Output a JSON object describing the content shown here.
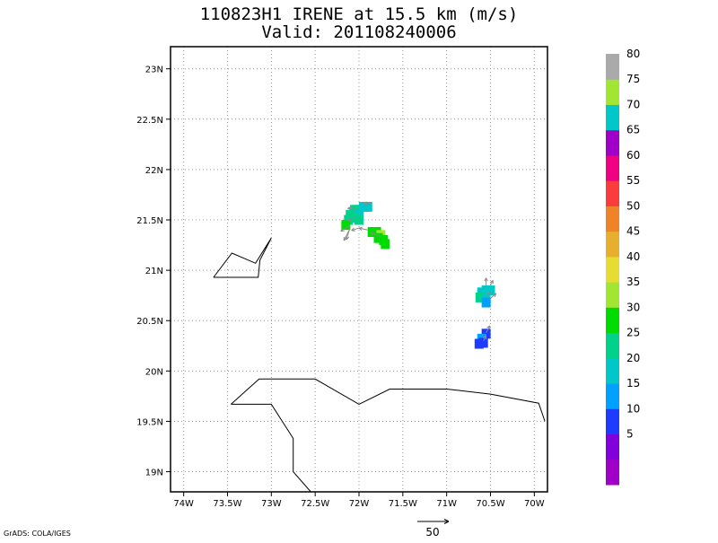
{
  "title": {
    "line1": "110823H1 IRENE at 15.5 km (m/s)",
    "line2": "Valid: 201108240006"
  },
  "axes": {
    "x_ticks": [
      {
        "value": -74.0,
        "label": "74W"
      },
      {
        "value": -73.5,
        "label": "73.5W"
      },
      {
        "value": -73.0,
        "label": "73W"
      },
      {
        "value": -72.5,
        "label": "72.5W"
      },
      {
        "value": -72.0,
        "label": "72W"
      },
      {
        "value": -71.5,
        "label": "71.5W"
      },
      {
        "value": -71.0,
        "label": "71W"
      },
      {
        "value": -70.5,
        "label": "70.5W"
      },
      {
        "value": -70.0,
        "label": "70W"
      }
    ],
    "y_ticks": [
      {
        "value": 19.0,
        "label": "19N"
      },
      {
        "value": 19.5,
        "label": "19.5N"
      },
      {
        "value": 20.0,
        "label": "20N"
      },
      {
        "value": 20.5,
        "label": "20.5N"
      },
      {
        "value": 21.0,
        "label": "21N"
      },
      {
        "value": 21.5,
        "label": "21.5N"
      },
      {
        "value": 22.0,
        "label": "22N"
      },
      {
        "value": 22.5,
        "label": "22.5N"
      },
      {
        "value": 23.0,
        "label": "23N"
      }
    ],
    "lon_range": [
      -74.15,
      -69.85
    ],
    "lat_range": [
      18.8,
      23.22
    ],
    "grid": true
  },
  "colorbar": {
    "levels": [
      {
        "color": "#a000c8"
      },
      {
        "label": "5",
        "color": "#8200dc"
      },
      {
        "label": "10",
        "color": "#1e3cff"
      },
      {
        "label": "15",
        "color": "#00a0ff"
      },
      {
        "label": "20",
        "color": "#00c8c8"
      },
      {
        "label": "25",
        "color": "#00d28c"
      },
      {
        "label": "30",
        "color": "#00dc00"
      },
      {
        "label": "35",
        "color": "#a0e632"
      },
      {
        "label": "40",
        "color": "#e6dc32"
      },
      {
        "label": "45",
        "color": "#e6af2d"
      },
      {
        "label": "50",
        "color": "#f08228"
      },
      {
        "label": "55",
        "color": "#fa3c3c"
      },
      {
        "label": "60",
        "color": "#f00082"
      },
      {
        "label": "65",
        "color": "#a000c8"
      },
      {
        "label": "70",
        "color": "#00c8c8"
      },
      {
        "label": "75",
        "color": "#a0e632"
      },
      {
        "label": "80",
        "color": "#aaaaaa"
      }
    ]
  },
  "scale_arrow": {
    "label": "50"
  },
  "footer": "GrADS: COLA/IGES",
  "map_data": {
    "coastlines": [
      [
        [
          -73.66,
          20.93
        ],
        [
          -73.45,
          21.17
        ],
        [
          -73.18,
          21.07
        ],
        [
          -73.0,
          21.32
        ],
        [
          -73.13,
          21.1
        ],
        [
          -73.15,
          20.93
        ],
        [
          -73.66,
          20.93
        ]
      ],
      [
        [
          -73.46,
          19.67
        ],
        [
          -73.14,
          19.92
        ],
        [
          -72.5,
          19.92
        ],
        [
          -72.0,
          19.67
        ],
        [
          -71.65,
          19.82
        ],
        [
          -71.0,
          19.82
        ],
        [
          -70.5,
          19.77
        ],
        [
          -69.95,
          19.68
        ],
        [
          -69.88,
          19.5
        ]
      ],
      [
        [
          -73.46,
          19.67
        ],
        [
          -73.0,
          19.67
        ],
        [
          -72.75,
          19.33
        ],
        [
          -72.75,
          19.0
        ],
        [
          -72.55,
          18.8
        ]
      ]
    ],
    "cells": [
      {
        "lon": -71.9,
        "lat": 21.63,
        "v": 20
      },
      {
        "lon": -71.95,
        "lat": 21.63,
        "v": 20
      },
      {
        "lon": -72.0,
        "lat": 21.6,
        "v": 22
      },
      {
        "lon": -72.05,
        "lat": 21.6,
        "v": 25
      },
      {
        "lon": -72.1,
        "lat": 21.55,
        "v": 25
      },
      {
        "lon": -72.0,
        "lat": 21.55,
        "v": 22
      },
      {
        "lon": -72.05,
        "lat": 21.52,
        "v": 28
      },
      {
        "lon": -72.0,
        "lat": 21.5,
        "v": 27
      },
      {
        "lon": -72.12,
        "lat": 21.5,
        "v": 28
      },
      {
        "lon": -72.15,
        "lat": 21.45,
        "v": 31
      },
      {
        "lon": -71.85,
        "lat": 21.38,
        "v": 33
      },
      {
        "lon": -71.8,
        "lat": 21.38,
        "v": 33
      },
      {
        "lon": -71.75,
        "lat": 21.35,
        "v": 36
      },
      {
        "lon": -71.78,
        "lat": 21.32,
        "v": 34
      },
      {
        "lon": -71.72,
        "lat": 21.3,
        "v": 33
      },
      {
        "lon": -71.7,
        "lat": 21.26,
        "v": 32
      },
      {
        "lon": -70.55,
        "lat": 20.8,
        "v": 22
      },
      {
        "lon": -70.6,
        "lat": 20.78,
        "v": 24
      },
      {
        "lon": -70.5,
        "lat": 20.8,
        "v": 21
      },
      {
        "lon": -70.62,
        "lat": 20.73,
        "v": 25
      },
      {
        "lon": -70.55,
        "lat": 20.72,
        "v": 20
      },
      {
        "lon": -70.55,
        "lat": 20.68,
        "v": 18
      },
      {
        "lon": -70.55,
        "lat": 20.37,
        "v": 14
      },
      {
        "lon": -70.6,
        "lat": 20.32,
        "v": 15
      },
      {
        "lon": -70.58,
        "lat": 20.28,
        "v": 12
      },
      {
        "lon": -70.63,
        "lat": 20.27,
        "v": 12
      }
    ],
    "vectors": [
      {
        "lon": -71.85,
        "lat": 21.66,
        "u": -14,
        "v": 0.5
      },
      {
        "lon": -72.0,
        "lat": 21.62,
        "u": -18,
        "v": -1
      },
      {
        "lon": -72.05,
        "lat": 21.52,
        "u": -12,
        "v": -4
      },
      {
        "lon": -72.1,
        "lat": 21.45,
        "u": -15,
        "v": -10
      },
      {
        "lon": -72.1,
        "lat": 21.43,
        "u": -6,
        "v": -20
      },
      {
        "lon": -72.1,
        "lat": 21.42,
        "u": -10,
        "v": -20
      },
      {
        "lon": -72.0,
        "lat": 21.42,
        "u": -12,
        "v": -4
      },
      {
        "lon": -71.9,
        "lat": 21.4,
        "u": -14,
        "v": 3
      },
      {
        "lon": -71.75,
        "lat": 21.33,
        "u": -16,
        "v": 7
      },
      {
        "lon": -70.55,
        "lat": 20.85,
        "u": 0,
        "v": 12
      },
      {
        "lon": -70.5,
        "lat": 20.85,
        "u": 4,
        "v": 8
      },
      {
        "lon": -70.55,
        "lat": 20.74,
        "u": 7,
        "v": 7
      },
      {
        "lon": -70.5,
        "lat": 20.72,
        "u": 9,
        "v": 8
      },
      {
        "lon": -70.55,
        "lat": 20.38,
        "u": 6,
        "v": 11
      },
      {
        "lon": -70.58,
        "lat": 20.3,
        "u": 4,
        "v": 8
      }
    ],
    "vector_reference": 50
  }
}
